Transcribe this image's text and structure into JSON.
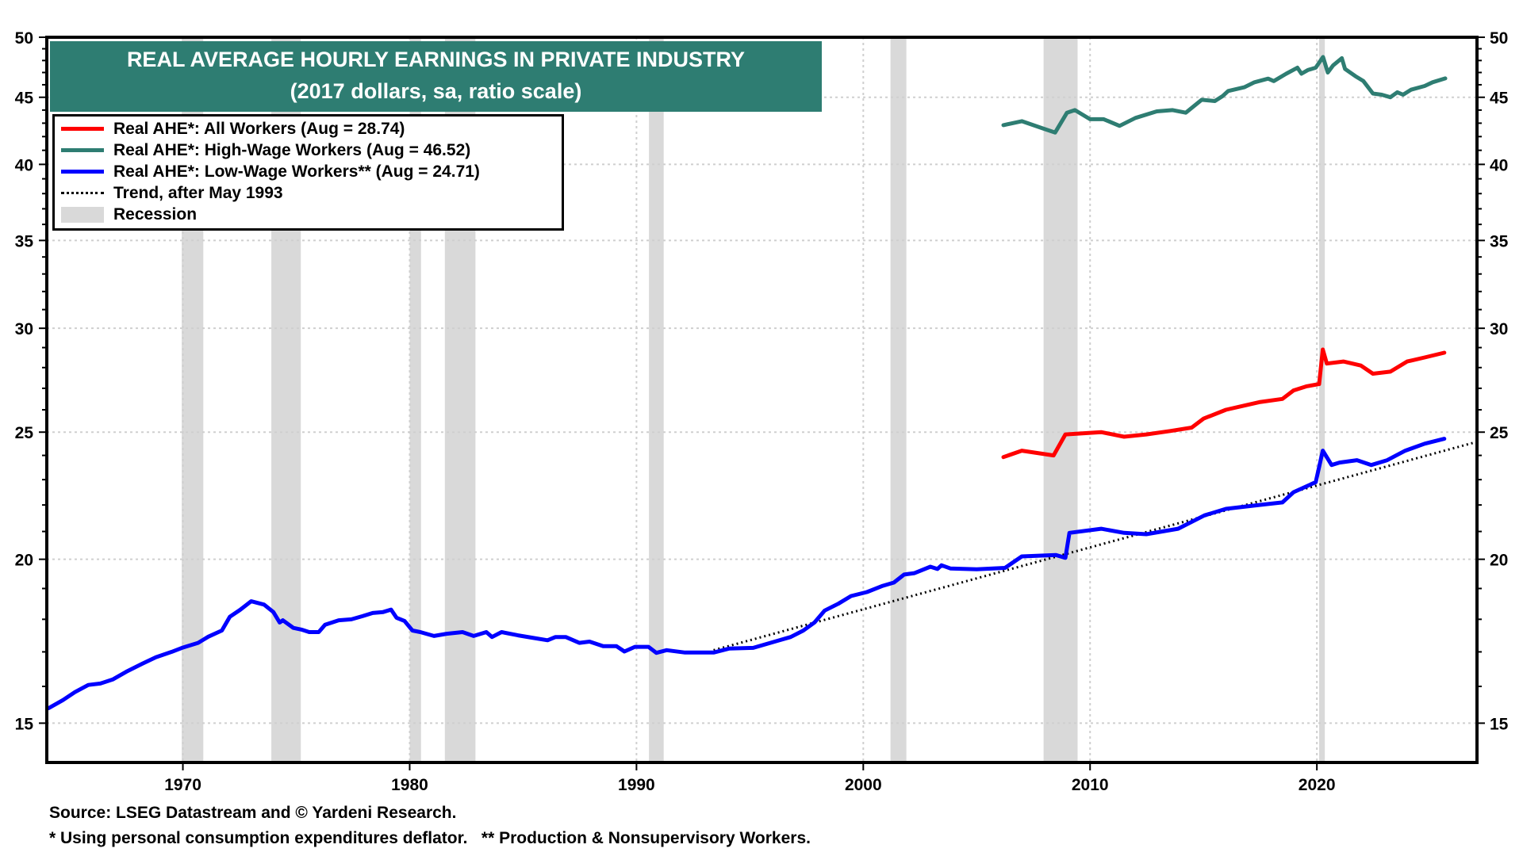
{
  "chart_data": {
    "type": "line",
    "title": "REAL AVERAGE HOURLY EARNINGS IN PRIVATE INDUSTRY",
    "subtitle": "(2017 dollars, sa, ratio scale)",
    "xlabel": "",
    "ylabel": "",
    "yscale": "log",
    "xlim": [
      1964.0,
      2027.06
    ],
    "ylim": [
      14,
      50
    ],
    "x_ticks": [
      1970,
      1980,
      1990,
      2000,
      2010,
      2020
    ],
    "x_tick_labels": [
      "1970",
      "1980",
      "1990",
      "2000",
      "2010",
      "2020"
    ],
    "y_ticks": [
      15,
      20,
      25,
      30,
      35,
      40,
      45,
      50
    ],
    "y_tick_labels": [
      "15",
      "20",
      "25",
      "30",
      "35",
      "40",
      "45",
      "50"
    ],
    "y_minor_ticks": [
      16,
      17,
      18,
      19,
      21,
      22,
      23,
      24,
      26,
      27,
      28,
      29,
      31,
      32,
      33,
      34,
      36,
      37,
      38,
      39,
      41,
      42,
      43,
      44,
      46,
      47,
      48,
      49
    ],
    "grid": true,
    "legend_position": "top-left",
    "colors": {
      "all_workers": "#ff0000",
      "high_wage": "#2e7d72",
      "low_wage": "#0000ff",
      "trend": "#000000",
      "recession": "#d9d9d9",
      "title_bg": "#2e7d72"
    },
    "legend": [
      {
        "key": "all_workers",
        "label": "Real AHE*: All Workers (Aug = 28.74)",
        "style": "solid"
      },
      {
        "key": "high_wage",
        "label": "Real AHE*: High-Wage Workers (Aug = 46.52)",
        "style": "solid"
      },
      {
        "key": "low_wage",
        "label": "Real AHE*: Low-Wage Workers** (Aug = 24.71)",
        "style": "solid"
      },
      {
        "key": "trend",
        "label": "Trend, after May 1993",
        "style": "dotted"
      },
      {
        "key": "recession",
        "label": "Recession",
        "style": "band"
      }
    ],
    "recessions": [
      [
        1969.95,
        1970.9
      ],
      [
        1973.9,
        1975.2
      ],
      [
        1980.0,
        1980.5
      ],
      [
        1981.55,
        1982.9
      ],
      [
        1990.55,
        1991.2
      ],
      [
        2001.2,
        2001.9
      ],
      [
        2007.95,
        2009.45
      ],
      [
        2020.1,
        2020.35
      ]
    ],
    "series": [
      {
        "name": "Real AHE*: Low-Wage Workers**",
        "key": "low_wage",
        "points": [
          [
            1964.08,
            15.4
          ],
          [
            1964.71,
            15.62
          ],
          [
            1965.24,
            15.84
          ],
          [
            1965.83,
            16.04
          ],
          [
            1966.36,
            16.08
          ],
          [
            1966.92,
            16.2
          ],
          [
            1967.51,
            16.42
          ],
          [
            1968.21,
            16.65
          ],
          [
            1968.81,
            16.84
          ],
          [
            1969.51,
            17.0
          ],
          [
            1969.96,
            17.12
          ],
          [
            1970.67,
            17.27
          ],
          [
            1971.12,
            17.46
          ],
          [
            1971.72,
            17.65
          ],
          [
            1972.07,
            18.08
          ],
          [
            1972.52,
            18.3
          ],
          [
            1973.01,
            18.58
          ],
          [
            1973.58,
            18.47
          ],
          [
            1973.99,
            18.23
          ],
          [
            1974.27,
            17.9
          ],
          [
            1974.41,
            17.97
          ],
          [
            1974.87,
            17.73
          ],
          [
            1975.22,
            17.68
          ],
          [
            1975.57,
            17.6
          ],
          [
            1975.99,
            17.6
          ],
          [
            1976.27,
            17.83
          ],
          [
            1976.87,
            17.97
          ],
          [
            1977.43,
            18.0
          ],
          [
            1977.92,
            18.1
          ],
          [
            1978.37,
            18.2
          ],
          [
            1978.83,
            18.23
          ],
          [
            1979.18,
            18.31
          ],
          [
            1979.42,
            18.05
          ],
          [
            1979.77,
            17.95
          ],
          [
            1980.12,
            17.65
          ],
          [
            1980.47,
            17.6
          ],
          [
            1981.07,
            17.48
          ],
          [
            1981.63,
            17.55
          ],
          [
            1982.33,
            17.6
          ],
          [
            1982.82,
            17.48
          ],
          [
            1983.38,
            17.6
          ],
          [
            1983.63,
            17.45
          ],
          [
            1984.05,
            17.6
          ],
          [
            1984.78,
            17.5
          ],
          [
            1985.38,
            17.43
          ],
          [
            1986.08,
            17.35
          ],
          [
            1986.43,
            17.45
          ],
          [
            1986.88,
            17.45
          ],
          [
            1987.48,
            17.27
          ],
          [
            1987.93,
            17.31
          ],
          [
            1988.53,
            17.17
          ],
          [
            1989.12,
            17.17
          ],
          [
            1989.47,
            17.01
          ],
          [
            1989.93,
            17.15
          ],
          [
            1990.53,
            17.15
          ],
          [
            1990.88,
            16.97
          ],
          [
            1991.33,
            17.05
          ],
          [
            1992.14,
            16.98
          ],
          [
            1992.98,
            16.98
          ],
          [
            1993.4,
            16.98
          ],
          [
            1994.1,
            17.1
          ],
          [
            1995.15,
            17.12
          ],
          [
            1996.2,
            17.33
          ],
          [
            1996.8,
            17.45
          ],
          [
            1997.36,
            17.65
          ],
          [
            1997.85,
            17.9
          ],
          [
            1998.3,
            18.28
          ],
          [
            1998.9,
            18.5
          ],
          [
            1999.46,
            18.75
          ],
          [
            2000.16,
            18.88
          ],
          [
            2000.86,
            19.09
          ],
          [
            2001.35,
            19.2
          ],
          [
            2001.8,
            19.47
          ],
          [
            2002.26,
            19.52
          ],
          [
            2002.96,
            19.74
          ],
          [
            2003.27,
            19.66
          ],
          [
            2003.45,
            19.79
          ],
          [
            2003.84,
            19.68
          ],
          [
            2005.0,
            19.65
          ],
          [
            2006.25,
            19.7
          ],
          [
            2006.99,
            20.1
          ],
          [
            2008.5,
            20.15
          ],
          [
            2008.91,
            20.05
          ],
          [
            2009.09,
            20.95
          ],
          [
            2010.49,
            21.1
          ],
          [
            2011.5,
            20.95
          ],
          [
            2012.48,
            20.9
          ],
          [
            2013.88,
            21.1
          ],
          [
            2015.04,
            21.6
          ],
          [
            2015.99,
            21.85
          ],
          [
            2017.46,
            22.0
          ],
          [
            2018.48,
            22.1
          ],
          [
            2018.97,
            22.5
          ],
          [
            2019.95,
            22.9
          ],
          [
            2020.26,
            24.2
          ],
          [
            2020.65,
            23.6
          ],
          [
            2021.0,
            23.7
          ],
          [
            2021.77,
            23.8
          ],
          [
            2022.4,
            23.6
          ],
          [
            2023.1,
            23.8
          ],
          [
            2023.9,
            24.2
          ],
          [
            2024.75,
            24.5
          ],
          [
            2025.62,
            24.71
          ]
        ]
      },
      {
        "name": "Real AHE*: All Workers",
        "key": "all_workers",
        "points": [
          [
            2006.18,
            23.93
          ],
          [
            2006.99,
            24.2
          ],
          [
            2008.39,
            24.0
          ],
          [
            2008.91,
            24.9
          ],
          [
            2010.49,
            25.0
          ],
          [
            2011.5,
            24.8
          ],
          [
            2012.48,
            24.9
          ],
          [
            2013.53,
            25.05
          ],
          [
            2014.48,
            25.2
          ],
          [
            2015.0,
            25.6
          ],
          [
            2015.99,
            26.0
          ],
          [
            2017.46,
            26.35
          ],
          [
            2018.48,
            26.5
          ],
          [
            2018.97,
            26.9
          ],
          [
            2019.56,
            27.1
          ],
          [
            2020.1,
            27.2
          ],
          [
            2020.26,
            28.9
          ],
          [
            2020.44,
            28.2
          ],
          [
            2021.17,
            28.3
          ],
          [
            2021.94,
            28.1
          ],
          [
            2022.47,
            27.7
          ],
          [
            2023.24,
            27.8
          ],
          [
            2023.98,
            28.3
          ],
          [
            2024.75,
            28.5
          ],
          [
            2025.62,
            28.74
          ]
        ]
      },
      {
        "name": "Real AHE*: High-Wage Workers",
        "key": "high_wage",
        "points": [
          [
            2006.18,
            42.85
          ],
          [
            2006.99,
            43.15
          ],
          [
            2007.93,
            42.6
          ],
          [
            2008.46,
            42.3
          ],
          [
            2008.98,
            43.8
          ],
          [
            2009.33,
            44.0
          ],
          [
            2010.0,
            43.3
          ],
          [
            2010.6,
            43.3
          ],
          [
            2011.3,
            42.8
          ],
          [
            2012.0,
            43.4
          ],
          [
            2012.94,
            43.9
          ],
          [
            2013.64,
            44.0
          ],
          [
            2014.22,
            43.8
          ],
          [
            2014.92,
            44.8
          ],
          [
            2015.5,
            44.7
          ],
          [
            2015.85,
            45.1
          ],
          [
            2016.09,
            45.5
          ],
          [
            2016.8,
            45.8
          ],
          [
            2017.25,
            46.2
          ],
          [
            2017.85,
            46.5
          ],
          [
            2018.1,
            46.3
          ],
          [
            2018.65,
            46.9
          ],
          [
            2019.14,
            47.4
          ],
          [
            2019.32,
            46.9
          ],
          [
            2019.6,
            47.2
          ],
          [
            2019.95,
            47.4
          ],
          [
            2020.27,
            48.3
          ],
          [
            2020.48,
            47.0
          ],
          [
            2020.72,
            47.6
          ],
          [
            2021.1,
            48.2
          ],
          [
            2021.24,
            47.3
          ],
          [
            2021.7,
            46.7
          ],
          [
            2022.05,
            46.3
          ],
          [
            2022.47,
            45.3
          ],
          [
            2022.86,
            45.2
          ],
          [
            2023.24,
            45.0
          ],
          [
            2023.55,
            45.4
          ],
          [
            2023.8,
            45.2
          ],
          [
            2024.15,
            45.6
          ],
          [
            2024.75,
            45.9
          ],
          [
            2025.1,
            46.2
          ],
          [
            2025.66,
            46.52
          ]
        ]
      },
      {
        "name": "Trend, after May 1993",
        "key": "trend",
        "points": [
          [
            1993.4,
            17.05
          ],
          [
            2027.06,
            24.58
          ]
        ]
      }
    ]
  },
  "footer": {
    "source": "Source: LSEG Datastream and © Yardeni Research.",
    "note": "* Using personal consumption expenditures deflator.   ** Production & Nonsupervisory Workers."
  }
}
